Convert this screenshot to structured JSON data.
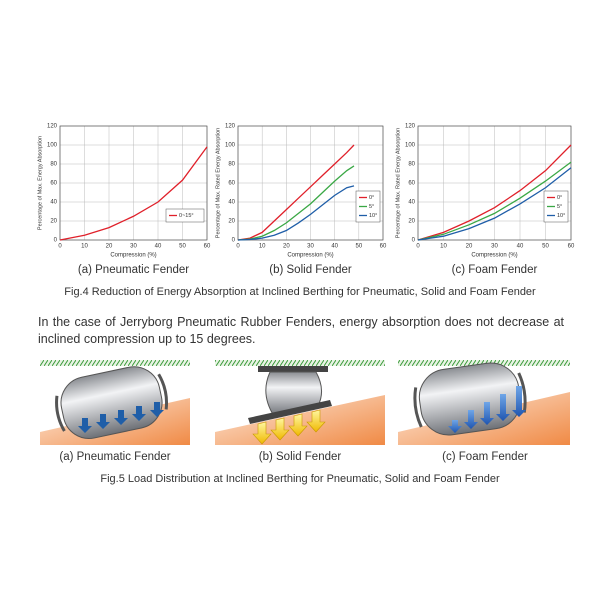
{
  "chart_data": [
    {
      "type": "line",
      "title": "(a) Pneumatic Fender",
      "xlabel": "Compression (%)",
      "ylabel": "Percentage of Max. Energy Absorption",
      "x": [
        0,
        10,
        20,
        30,
        40,
        50,
        60
      ],
      "series": [
        {
          "name": "0~15°",
          "color": "#e0202a",
          "values": [
            0,
            5,
            13,
            25,
            40,
            63,
            98
          ]
        }
      ],
      "xlim": [
        0,
        60
      ],
      "ylim": [
        0,
        120
      ],
      "xticks": [
        0,
        10,
        20,
        30,
        40,
        50,
        60
      ],
      "yticks": [
        0,
        20,
        40,
        60,
        80,
        100,
        120
      ],
      "grid": true,
      "legend": "lower right"
    },
    {
      "type": "line",
      "title": "(b) Solid Fender",
      "xlabel": "Compression (%)",
      "ylabel": "Percentage of Max. Rated Energy Absorption",
      "x": [
        0,
        5,
        10,
        15,
        20,
        25,
        30,
        35,
        40,
        45,
        48
      ],
      "series": [
        {
          "name": "0°",
          "color": "#e0202a",
          "values": [
            0,
            2,
            8,
            20,
            32,
            44,
            56,
            68,
            80,
            92,
            100
          ]
        },
        {
          "name": "5°",
          "color": "#3aa845",
          "values": [
            0,
            1,
            4,
            10,
            18,
            28,
            38,
            50,
            62,
            73,
            78
          ]
        },
        {
          "name": "10°",
          "color": "#1f5ea8",
          "values": [
            0,
            0.5,
            2,
            5,
            10,
            18,
            27,
            37,
            47,
            55,
            57
          ]
        }
      ],
      "xlim": [
        0,
        60
      ],
      "ylim": [
        0,
        120
      ],
      "xticks": [
        0,
        10,
        20,
        30,
        40,
        50,
        60
      ],
      "yticks": [
        0,
        20,
        40,
        60,
        80,
        100,
        120
      ],
      "grid": true,
      "legend": "lower right"
    },
    {
      "type": "line",
      "title": "(c) Foam Fender",
      "xlabel": "Compression (%)",
      "ylabel": "Percentage of Max. Rated Energy Absorption",
      "x": [
        0,
        10,
        20,
        30,
        40,
        50,
        60
      ],
      "series": [
        {
          "name": "0°",
          "color": "#e0202a",
          "values": [
            0,
            8,
            20,
            34,
            52,
            73,
            100
          ]
        },
        {
          "name": "5°",
          "color": "#3aa845",
          "values": [
            0,
            6,
            16,
            28,
            44,
            62,
            82
          ]
        },
        {
          "name": "10°",
          "color": "#1f5ea8",
          "values": [
            0,
            4,
            12,
            23,
            38,
            55,
            76
          ]
        }
      ],
      "xlim": [
        0,
        60
      ],
      "ylim": [
        0,
        120
      ],
      "xticks": [
        0,
        10,
        20,
        30,
        40,
        50,
        60
      ],
      "yticks": [
        0,
        20,
        40,
        60,
        80,
        100,
        120
      ],
      "grid": true,
      "legend": "lower right"
    }
  ],
  "document": {
    "fig4_caption": "Fig.4 Reduction of Energy Absorption at Inclined Berthing for Pneumatic, Solid and Foam Fender",
    "paragraph": "In the case of Jerryborg Pneumatic Rubber Fenders, energy absorption does not decrease at inclined compression up to 15 degrees.",
    "fig5": {
      "panels": [
        "(a) Pneumatic Fender",
        "(b) Solid Fender",
        "(c) Foam Fender"
      ],
      "caption": "Fig.5 Load Distribution at Inclined Berthing for Pneumatic, Solid and Foam Fender"
    }
  }
}
